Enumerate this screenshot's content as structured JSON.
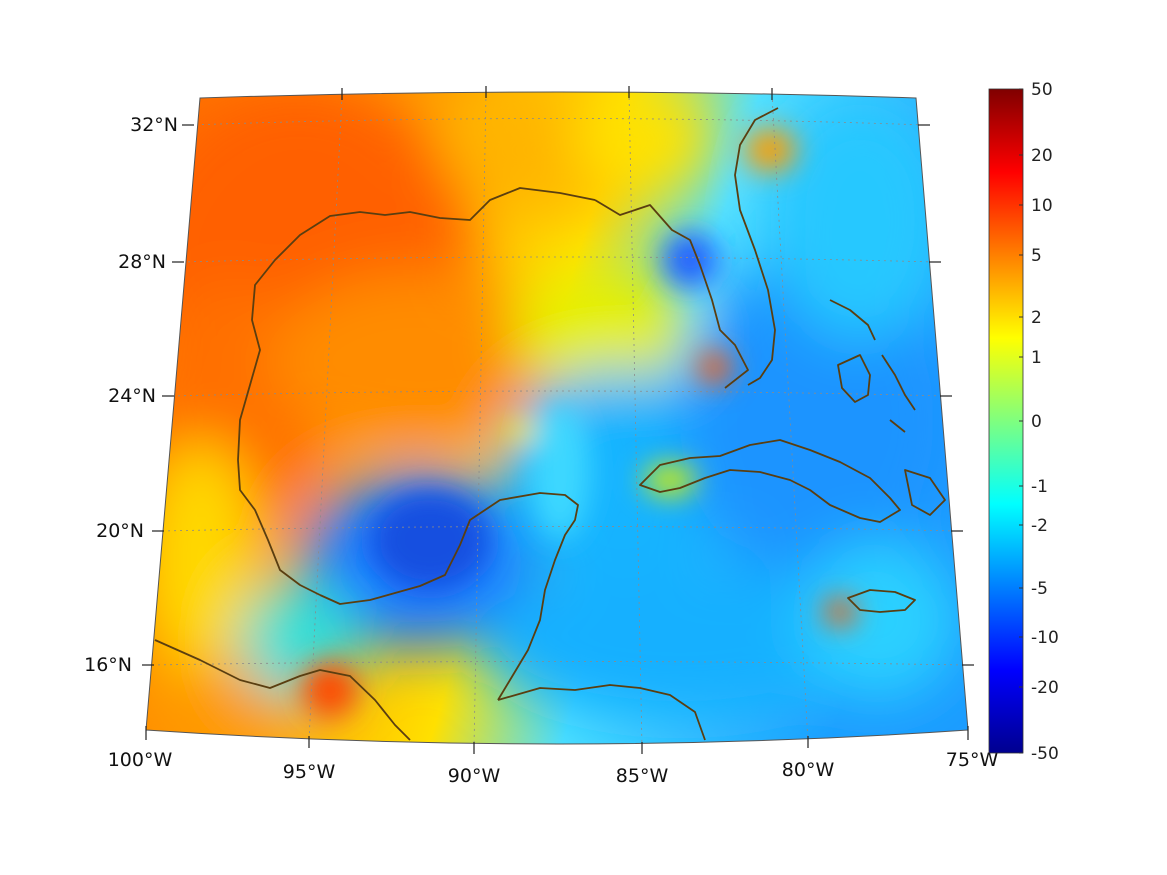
{
  "map": {
    "projection": "conic",
    "grid": true,
    "coastline_color": "#5a3e10",
    "lat_labels": [
      "32°N",
      "28°N",
      "24°N",
      "20°N",
      "16°N"
    ],
    "lon_labels": [
      "100°W",
      "95°W",
      "90°W",
      "85°W",
      "80°W",
      "75°W"
    ]
  },
  "colorbar": {
    "colormap": "jet",
    "tick_labels": [
      "50",
      "20",
      "10",
      "5",
      "2",
      "1",
      "0",
      "-1",
      "-2",
      "-5",
      "-10",
      "-20",
      "-50"
    ]
  }
}
